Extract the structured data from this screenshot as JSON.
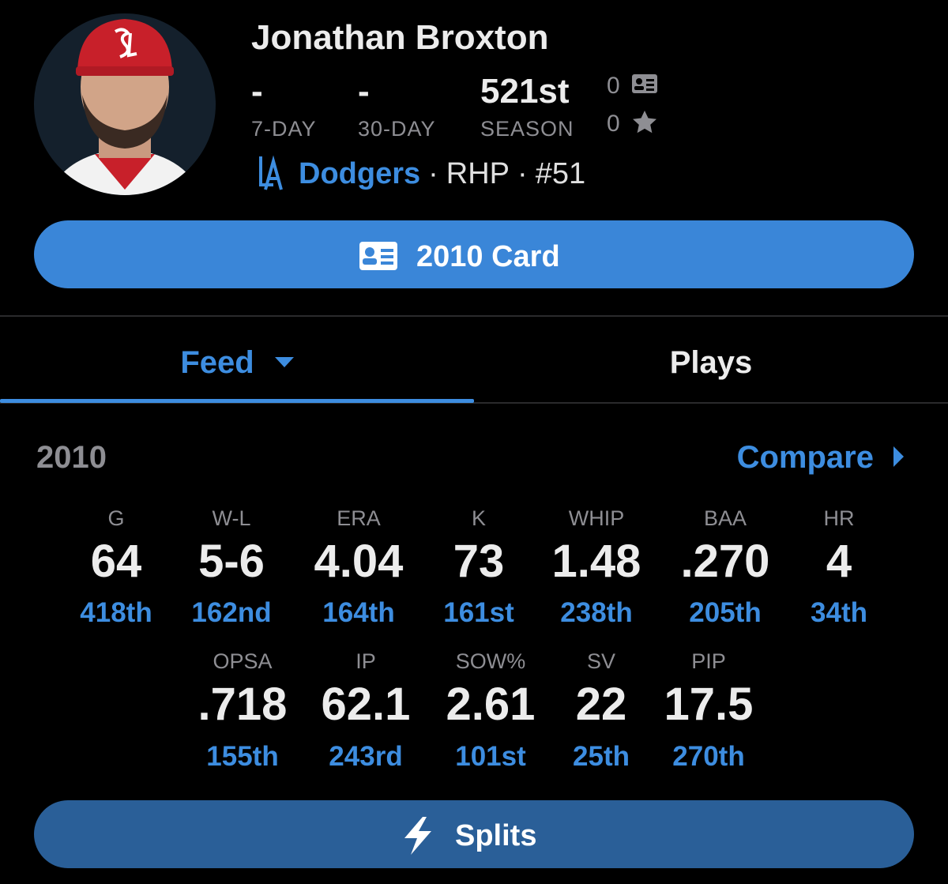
{
  "header": {
    "name": "Jonathan Broxton",
    "ranks": [
      {
        "value": "-",
        "label": "7-DAY"
      },
      {
        "value": "-",
        "label": "30-DAY"
      },
      {
        "value": "521st",
        "label": "SEASON"
      }
    ],
    "card_count": "0",
    "star_count": "0",
    "team": "Dodgers",
    "separator": "·",
    "position": "RHP",
    "number": "#51"
  },
  "card_button": "2010 Card",
  "tabs": [
    "Feed",
    "Plays"
  ],
  "season": "2010",
  "compare": "Compare",
  "stats": {
    "rows": [
      [
        {
          "label": "G",
          "value": "64",
          "rank": "418th"
        },
        {
          "label": "W-L",
          "value": "5-6",
          "rank": "162nd"
        },
        {
          "label": "ERA",
          "value": "4.04",
          "rank": "164th"
        },
        {
          "label": "K",
          "value": "73",
          "rank": "161st"
        },
        {
          "label": "WHIP",
          "value": "1.48",
          "rank": "238th"
        },
        {
          "label": "BAA",
          "value": ".270",
          "rank": "205th"
        },
        {
          "label": "HR",
          "value": "4",
          "rank": "34th"
        }
      ],
      [
        {
          "label": "OPSA",
          "value": ".718",
          "rank": "155th"
        },
        {
          "label": "IP",
          "value": "62.1",
          "rank": "243rd"
        },
        {
          "label": "SOW%",
          "value": "2.61",
          "rank": "101st"
        },
        {
          "label": "SV",
          "value": "22",
          "rank": "25th"
        },
        {
          "label": "PIP",
          "value": "17.5",
          "rank": "270th"
        }
      ]
    ]
  },
  "splits_button": "Splits"
}
